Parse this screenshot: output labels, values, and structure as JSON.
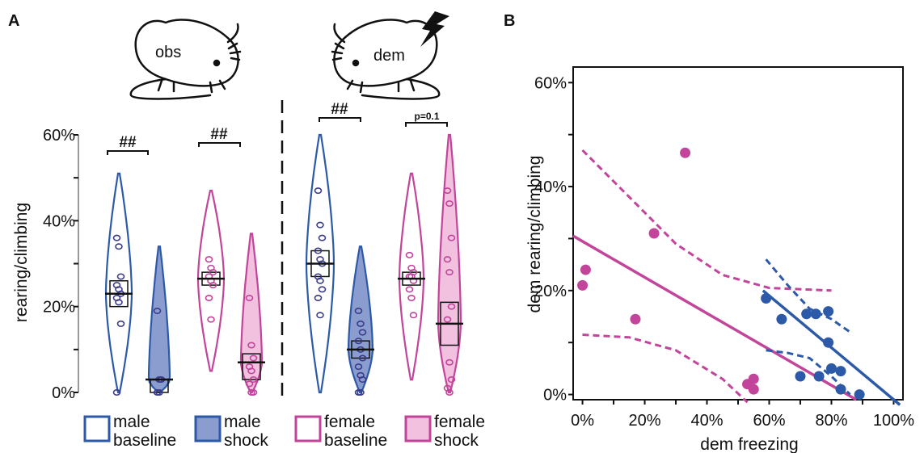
{
  "panel_a_label": "A",
  "panel_b_label": "B",
  "mouse_obs_label": "obs",
  "mouse_dem_label": "dem",
  "colors": {
    "blue": "#2d5aa8",
    "blue_fill": "#8b9ccf",
    "pink": "#c2459b",
    "pink_fill": "#f1c1df",
    "dark": "#111111"
  },
  "chart_data": [
    {
      "type": "violin",
      "panel": "A",
      "ylabel": "rearing/climbing",
      "ylim": [
        0,
        60
      ],
      "yticks": [
        "0%",
        "20%",
        "40%",
        "60%"
      ],
      "ytick_values": [
        0,
        20,
        40,
        60
      ],
      "groups": [
        {
          "name": "male baseline",
          "legend_line1": "male",
          "legend_line2": "baseline",
          "color": "#2d5aa8",
          "filled": false,
          "median": 23,
          "ci": [
            20,
            26
          ],
          "range": [
            0,
            51
          ],
          "points": [
            36,
            34,
            27,
            25,
            24,
            23,
            22,
            21,
            16,
            0
          ]
        },
        {
          "name": "male shock",
          "legend_line1": "male",
          "legend_line2": "shock",
          "color": "#2d5aa8",
          "filled": true,
          "median": 3,
          "ci": [
            0,
            3
          ],
          "range": [
            0,
            34
          ],
          "points": [
            19,
            3,
            3,
            0,
            0
          ]
        },
        {
          "name": "female baseline",
          "legend_line1": "female",
          "legend_line2": "baseline",
          "color": "#c2459b",
          "filled": false,
          "median": 26.5,
          "ci": [
            25,
            28
          ],
          "range": [
            5,
            47
          ],
          "points": [
            31,
            29,
            28,
            27,
            26,
            25,
            22,
            17
          ]
        },
        {
          "name": "female shock",
          "legend_line1": "female",
          "legend_line2": "shock",
          "color": "#c2459b",
          "filled": true,
          "median": 7,
          "ci": [
            3,
            9
          ],
          "range": [
            0,
            37
          ],
          "points": [
            22,
            11,
            8,
            6,
            5,
            3,
            2,
            0,
            0
          ]
        },
        {
          "name": "male baseline (dem)",
          "color": "#2d5aa8",
          "filled": false,
          "median": 30,
          "ci": [
            27,
            33
          ],
          "range": [
            0,
            60
          ],
          "points": [
            47,
            39,
            36,
            33,
            31,
            30,
            27,
            26,
            24,
            22,
            18
          ]
        },
        {
          "name": "male shock (dem)",
          "color": "#2d5aa8",
          "filled": true,
          "median": 10,
          "ci": [
            8,
            12
          ],
          "range": [
            0,
            34
          ],
          "points": [
            19,
            16,
            14,
            12,
            10,
            8,
            6,
            4,
            3,
            0,
            0
          ]
        },
        {
          "name": "female baseline (dem)",
          "color": "#c2459b",
          "filled": false,
          "median": 26.5,
          "ci": [
            25,
            28
          ],
          "range": [
            3,
            51
          ],
          "points": [
            32,
            29,
            28,
            27,
            27,
            26,
            24,
            22,
            18
          ]
        },
        {
          "name": "female shock (dem)",
          "color": "#c2459b",
          "filled": true,
          "median": 16,
          "ci": [
            11,
            21
          ],
          "range": [
            0,
            60
          ],
          "points": [
            47,
            44,
            36,
            31,
            28,
            20,
            17,
            7,
            3,
            1,
            0
          ]
        }
      ],
      "annotations": [
        "##",
        "##",
        "##",
        "p=0.1"
      ]
    },
    {
      "type": "scatter",
      "panel": "B",
      "xlabel": "dem freezing",
      "ylabel": "dem rearing/climbing",
      "xlim": [
        -3,
        103
      ],
      "ylim": [
        -1,
        63
      ],
      "xticks": [
        "0%",
        "20%",
        "40%",
        "60%",
        "80%",
        "100%"
      ],
      "xtick_values": [
        0,
        20,
        40,
        60,
        80,
        100
      ],
      "yticks": [
        "0%",
        "20%",
        "40%",
        "60%"
      ],
      "ytick_values": [
        0,
        20,
        40,
        60
      ],
      "series": [
        {
          "color": "#c2459b",
          "points": [
            [
              0,
              21
            ],
            [
              1,
              24
            ],
            [
              17,
              14.5
            ],
            [
              23,
              31
            ],
            [
              33,
              46.5
            ],
            [
              53,
              2
            ],
            [
              55,
              3
            ],
            [
              55,
              1
            ]
          ],
          "fit_line": [
            [
              -3,
              30.5
            ],
            [
              88,
              -1
            ]
          ],
          "ci_upper": [
            [
              0,
              47
            ],
            [
              15,
              38
            ],
            [
              30,
              29
            ],
            [
              45,
              23
            ],
            [
              60,
              20.5
            ],
            [
              80,
              20
            ]
          ],
          "ci_lower": [
            [
              0,
              11.5
            ],
            [
              15,
              11
            ],
            [
              30,
              8.5
            ],
            [
              45,
              3
            ],
            [
              53,
              -1.5
            ]
          ]
        },
        {
          "color": "#2d5aa8",
          "points": [
            [
              59,
              18.5
            ],
            [
              64,
              14.5
            ],
            [
              70,
              3.5
            ],
            [
              72,
              15.5
            ],
            [
              75,
              15.5
            ],
            [
              76,
              3.5
            ],
            [
              79,
              16
            ],
            [
              79,
              10
            ],
            [
              80,
              5
            ],
            [
              83,
              4.5
            ],
            [
              83,
              1
            ],
            [
              89,
              0
            ]
          ],
          "fit_line": [
            [
              58,
              20
            ],
            [
              102,
              -2
            ]
          ],
          "ci_upper": [
            [
              59,
              26
            ],
            [
              66,
              21
            ],
            [
              73,
              16.5
            ],
            [
              80,
              14.5
            ],
            [
              86,
              12
            ]
          ],
          "ci_lower": [
            [
              59,
              8.5
            ],
            [
              66,
              8
            ],
            [
              73,
              7
            ],
            [
              80,
              3.5
            ],
            [
              86,
              0
            ]
          ]
        }
      ]
    }
  ]
}
